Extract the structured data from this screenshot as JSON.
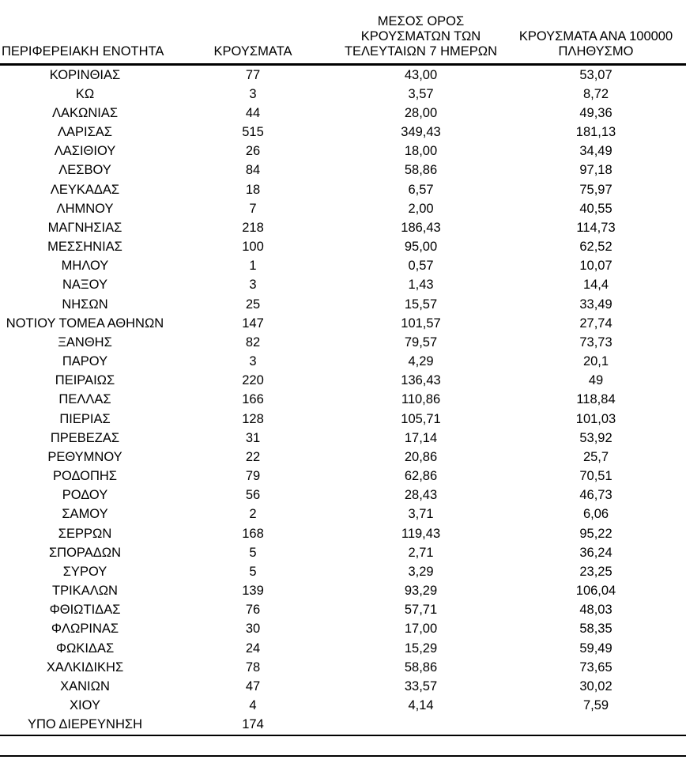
{
  "colors": {
    "text": "#000000",
    "background": "#ffffff",
    "rule": "#000000"
  },
  "table": {
    "headers": [
      "ΠΕΡΙΦΕΡΕΙΑΚΗ ΕΝΟΤΗΤΑ",
      "ΚΡΟΥΣΜΑΤΑ",
      "ΜΕΣΟΣ ΟΡΟΣ\nΚΡΟΥΣΜΑΤΩΝ ΤΩΝ\nΤΕΛΕΥΤΑΙΩΝ 7 ΗΜΕΡΩΝ",
      "ΚΡΟΥΣΜΑΤΑ ΑΝΑ 100000\nΠΛΗΘΥΣΜΟ"
    ],
    "cell_names": [
      "cell-region",
      "cell-cases",
      "cell-avg7days",
      "cell-per100k"
    ],
    "rows": [
      [
        "ΚΟΡΙΝΘΙΑΣ",
        "77",
        "43,00",
        "53,07"
      ],
      [
        "ΚΩ",
        "3",
        "3,57",
        "8,72"
      ],
      [
        "ΛΑΚΩΝΙΑΣ",
        "44",
        "28,00",
        "49,36"
      ],
      [
        "ΛΑΡΙΣΑΣ",
        "515",
        "349,43",
        "181,13"
      ],
      [
        "ΛΑΣΙΘΙΟΥ",
        "26",
        "18,00",
        "34,49"
      ],
      [
        "ΛΕΣΒΟΥ",
        "84",
        "58,86",
        "97,18"
      ],
      [
        "ΛΕΥΚΑΔΑΣ",
        "18",
        "6,57",
        "75,97"
      ],
      [
        "ΛΗΜΝΟΥ",
        "7",
        "2,00",
        "40,55"
      ],
      [
        "ΜΑΓΝΗΣΙΑΣ",
        "218",
        "186,43",
        "114,73"
      ],
      [
        "ΜΕΣΣΗΝΙΑΣ",
        "100",
        "95,00",
        "62,52"
      ],
      [
        "ΜΗΛΟΥ",
        "1",
        "0,57",
        "10,07"
      ],
      [
        "ΝΑΞΟΥ",
        "3",
        "1,43",
        "14,4"
      ],
      [
        "ΝΗΣΩΝ",
        "25",
        "15,57",
        "33,49"
      ],
      [
        "ΝΟΤΙΟΥ ΤΟΜΕΑ ΑΘΗΝΩΝ",
        "147",
        "101,57",
        "27,74"
      ],
      [
        "ΞΑΝΘΗΣ",
        "82",
        "79,57",
        "73,73"
      ],
      [
        "ΠΑΡΟΥ",
        "3",
        "4,29",
        "20,1"
      ],
      [
        "ΠΕΙΡΑΙΩΣ",
        "220",
        "136,43",
        "49"
      ],
      [
        "ΠΕΛΛΑΣ",
        "166",
        "110,86",
        "118,84"
      ],
      [
        "ΠΙΕΡΙΑΣ",
        "128",
        "105,71",
        "101,03"
      ],
      [
        "ΠΡΕΒΕΖΑΣ",
        "31",
        "17,14",
        "53,92"
      ],
      [
        "ΡΕΘΥΜΝΟΥ",
        "22",
        "20,86",
        "25,7"
      ],
      [
        "ΡΟΔΟΠΗΣ",
        "79",
        "62,86",
        "70,51"
      ],
      [
        "ΡΟΔΟΥ",
        "56",
        "28,43",
        "46,73"
      ],
      [
        "ΣΑΜΟΥ",
        "2",
        "3,71",
        "6,06"
      ],
      [
        "ΣΕΡΡΩΝ",
        "168",
        "119,43",
        "95,22"
      ],
      [
        "ΣΠΟΡΑΔΩΝ",
        "5",
        "2,71",
        "36,24"
      ],
      [
        "ΣΥΡΟΥ",
        "5",
        "3,29",
        "23,25"
      ],
      [
        "ΤΡΙΚΑΛΩΝ",
        "139",
        "93,29",
        "106,04"
      ],
      [
        "ΦΘΙΩΤΙΔΑΣ",
        "76",
        "57,71",
        "48,03"
      ],
      [
        "ΦΛΩΡΙΝΑΣ",
        "30",
        "17,00",
        "58,35"
      ],
      [
        "ΦΩΚΙΔΑΣ",
        "24",
        "15,29",
        "59,49"
      ],
      [
        "ΧΑΛΚΙΔΙΚΗΣ",
        "78",
        "58,86",
        "73,65"
      ],
      [
        "ΧΑΝΙΩΝ",
        "47",
        "33,57",
        "30,02"
      ],
      [
        "ΧΙΟΥ",
        "4",
        "4,14",
        "7,59"
      ],
      [
        "ΥΠΟ ΔΙΕΡΕΥΝΗΣΗ",
        "174",
        "",
        ""
      ]
    ]
  }
}
